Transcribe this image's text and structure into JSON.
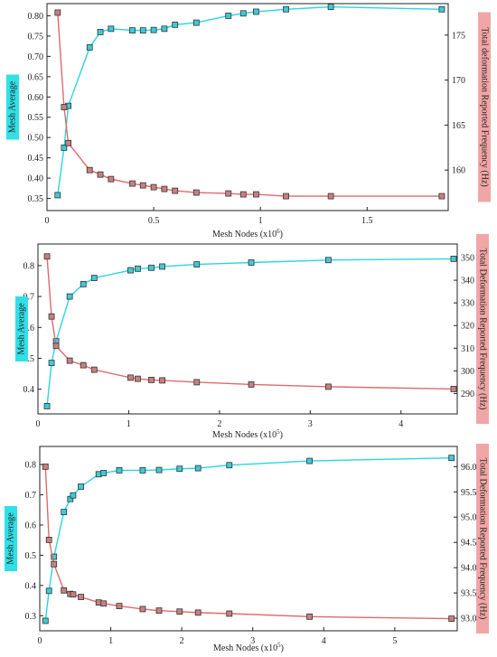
{
  "chart_data": [
    {
      "type": "line",
      "xlabel": "Mesh Nodes (x10",
      "xlabel_sup": "6",
      "xlabel_end": ")",
      "ylabel_left": "Mesh Average",
      "ylabel_right": "Total deformation Reported Frequency (Hz)",
      "xlim": [
        0,
        1.88
      ],
      "ylim_left": [
        0.32,
        0.83
      ],
      "ylim_right": [
        155.5,
        178.5
      ],
      "x_ticks": [
        0,
        0.5,
        1,
        1.5
      ],
      "x_tick_labels": [
        "0",
        "0.5",
        "1",
        "1.5"
      ],
      "y_left_ticks": [
        0.35,
        0.4,
        0.45,
        0.5,
        0.55,
        0.6,
        0.65,
        0.7,
        0.75,
        0.8
      ],
      "y_left_tick_labels": [
        "0.35",
        "0.40",
        "0.45",
        "0.50",
        "0.55",
        "0.60",
        "0.65",
        "0.70",
        "0.75",
        "0.80"
      ],
      "y_right_ticks": [
        160,
        165,
        170,
        175
      ],
      "y_right_tick_labels": [
        "160",
        "165",
        "170",
        "175"
      ],
      "series": [
        {
          "axis": "left",
          "color": "#29d6e0",
          "x": [
            0.05,
            0.08,
            0.1,
            0.2,
            0.25,
            0.3,
            0.4,
            0.45,
            0.5,
            0.55,
            0.6,
            0.7,
            0.85,
            0.92,
            0.98,
            1.12,
            1.33,
            1.85
          ],
          "values": [
            0.358,
            0.475,
            0.578,
            0.722,
            0.76,
            0.768,
            0.764,
            0.764,
            0.765,
            0.768,
            0.778,
            0.783,
            0.8,
            0.806,
            0.81,
            0.816,
            0.822,
            0.816
          ]
        },
        {
          "axis": "right",
          "color": "#e06a6a",
          "x": [
            0.05,
            0.08,
            0.1,
            0.2,
            0.25,
            0.3,
            0.4,
            0.45,
            0.5,
            0.55,
            0.6,
            0.7,
            0.85,
            0.92,
            0.98,
            1.12,
            1.33,
            1.85
          ],
          "values": [
            177.5,
            167.0,
            163.0,
            160.0,
            159.5,
            159.0,
            158.5,
            158.3,
            158.1,
            157.9,
            157.7,
            157.5,
            157.4,
            157.3,
            157.3,
            157.1,
            157.1,
            157.1
          ]
        }
      ]
    },
    {
      "type": "line",
      "xlabel": "Mesh Nodes (x10",
      "xlabel_sup": "5",
      "xlabel_end": ")",
      "ylabel_left": "Mesh Average",
      "ylabel_right": "Total Deformation Reported Frequency (Hz)",
      "xlim": [
        0,
        4.62
      ],
      "ylim_left": [
        0.32,
        0.87
      ],
      "ylim_right": [
        281,
        356
      ],
      "x_ticks": [
        0,
        1,
        2,
        3,
        4
      ],
      "x_tick_labels": [
        "0",
        "1",
        "2",
        "3",
        "4"
      ],
      "y_left_ticks": [
        0.4,
        0.5,
        0.6,
        0.7,
        0.8
      ],
      "y_left_tick_labels": [
        "0.4",
        "0.5",
        "0.6",
        "0.7",
        "0.8"
      ],
      "y_right_ticks": [
        290,
        300,
        310,
        320,
        330,
        340,
        350
      ],
      "y_right_tick_labels": [
        "290",
        "300",
        "310",
        "320",
        "330",
        "340",
        "350"
      ],
      "series": [
        {
          "axis": "left",
          "color": "#29d6e0",
          "x": [
            0.1,
            0.15,
            0.2,
            0.35,
            0.5,
            0.62,
            1.02,
            1.1,
            1.25,
            1.37,
            1.75,
            2.35,
            3.2,
            4.58
          ],
          "values": [
            0.345,
            0.485,
            0.555,
            0.7,
            0.74,
            0.76,
            0.785,
            0.79,
            0.793,
            0.797,
            0.804,
            0.81,
            0.818,
            0.822
          ]
        },
        {
          "axis": "right",
          "color": "#e06a6a",
          "x": [
            0.1,
            0.15,
            0.2,
            0.35,
            0.5,
            0.62,
            1.02,
            1.1,
            1.25,
            1.37,
            1.75,
            2.35,
            3.2,
            4.58
          ],
          "values": [
            350.5,
            324.0,
            311.0,
            304.5,
            302.5,
            300.5,
            297.0,
            296.5,
            296.0,
            295.8,
            295.0,
            294.0,
            293.0,
            292.0
          ]
        }
      ]
    },
    {
      "type": "line",
      "xlabel": "Mesh Nodes (x10",
      "xlabel_sup": "5",
      "xlabel_end": ")",
      "ylabel_left": "Mesh Average",
      "ylabel_right": "Total Deformation Reported Frequency (Hz)",
      "xlim": [
        0,
        5.88
      ],
      "ylim_left": [
        0.25,
        0.86
      ],
      "ylim_right": [
        92.75,
        96.4
      ],
      "x_ticks": [
        0,
        1,
        2,
        3,
        4,
        5
      ],
      "x_tick_labels": [
        "0",
        "1",
        "2",
        "3",
        "4",
        "5"
      ],
      "y_left_ticks": [
        0.3,
        0.4,
        0.5,
        0.6,
        0.7,
        0.8
      ],
      "y_left_tick_labels": [
        "0.3",
        "0.4",
        "0.5",
        "0.6",
        "0.7",
        "0.8"
      ],
      "y_right_ticks": [
        93.0,
        93.5,
        94.0,
        94.5,
        95.0,
        95.5,
        96.0
      ],
      "y_right_tick_labels": [
        "93.0",
        "93.5",
        "94.0",
        "94.5",
        "95.0",
        "95.5",
        "96.0"
      ],
      "series": [
        {
          "axis": "left",
          "color": "#29d6e0",
          "x": [
            0.08,
            0.13,
            0.2,
            0.34,
            0.43,
            0.47,
            0.58,
            0.83,
            0.9,
            1.12,
            1.45,
            1.68,
            1.97,
            2.23,
            2.67,
            3.8,
            5.8
          ],
          "values": [
            0.283,
            0.382,
            0.495,
            0.643,
            0.686,
            0.698,
            0.727,
            0.768,
            0.772,
            0.781,
            0.781,
            0.782,
            0.786,
            0.788,
            0.798,
            0.812,
            0.822
          ]
        },
        {
          "axis": "right",
          "color": "#e06a6a",
          "x": [
            0.08,
            0.13,
            0.2,
            0.34,
            0.43,
            0.47,
            0.58,
            0.83,
            0.9,
            1.12,
            1.45,
            1.68,
            1.97,
            2.23,
            2.67,
            3.8,
            5.8
          ],
          "values": [
            96.0,
            94.55,
            94.07,
            93.55,
            93.48,
            93.47,
            93.42,
            93.31,
            93.29,
            93.24,
            93.18,
            93.15,
            93.13,
            93.11,
            93.09,
            93.03,
            92.99
          ]
        }
      ]
    }
  ]
}
